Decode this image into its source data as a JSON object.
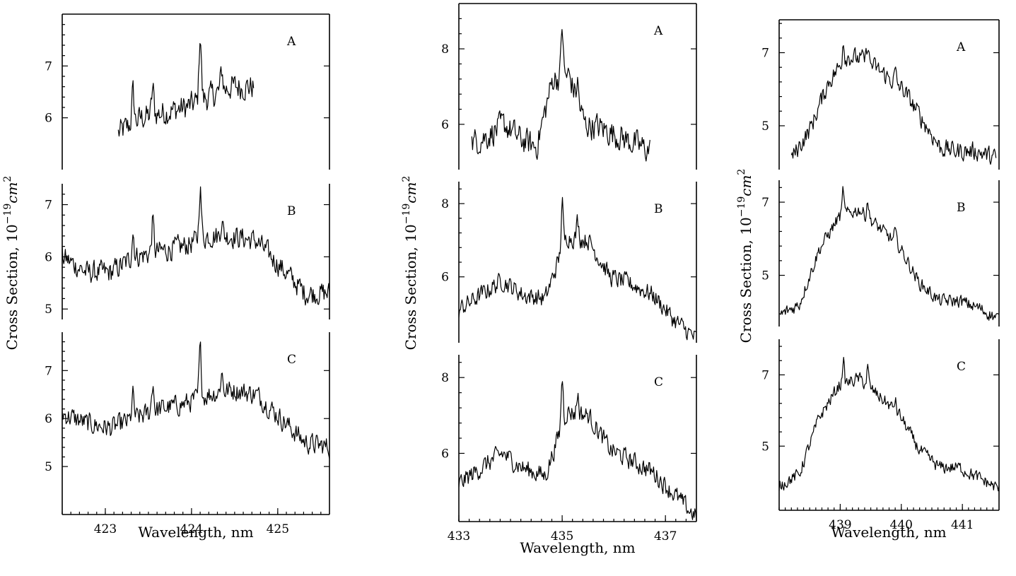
{
  "chart_data": [
    {
      "type": "line",
      "xlabel": "Wavelength, nm",
      "ylabel_text": "Cross Section, 10",
      "ylabel_exp": "−19",
      "ylabel_unit": "cm",
      "ylabel_unit_exp": "2",
      "xlim": [
        422.5,
        425.6
      ],
      "xticks": [
        "423",
        "424",
        "425"
      ],
      "xtick_values": [
        423,
        424,
        425
      ],
      "panels": [
        {
          "label": "A",
          "ylim": [
            5.0,
            8.0
          ],
          "yticks": [
            "6",
            "7"
          ],
          "ytick_values": [
            6,
            7
          ],
          "series": [
            {
              "x_range": [
                423.15,
                424.72
              ],
              "baseline": [
                5.7,
                6.0,
                6.1,
                6.2,
                6.4,
                6.6,
                6.6
              ],
              "peaks": [
                [
                  423.32,
                  0.6
                ],
                [
                  423.55,
                  0.5
                ],
                [
                  424.1,
                  1.3
                ],
                [
                  424.35,
                  0.4
                ]
              ],
              "noise": 0.35
            }
          ]
        },
        {
          "label": "B",
          "ylim": [
            4.8,
            7.4
          ],
          "yticks": [
            "5",
            "6",
            "7"
          ],
          "ytick_values": [
            5,
            6,
            7
          ],
          "series": [
            {
              "x_range": [
                422.5,
                425.6
              ],
              "baseline": [
                6.0,
                5.7,
                5.7,
                6.0,
                6.1,
                6.2,
                6.4,
                6.4,
                6.3,
                5.8,
                5.3,
                5.3
              ],
              "peaks": [
                [
                  423.32,
                  0.5
                ],
                [
                  423.55,
                  0.6
                ],
                [
                  424.1,
                  1.0
                ],
                [
                  424.35,
                  0.3
                ]
              ],
              "noise": 0.3
            }
          ]
        },
        {
          "label": "C",
          "ylim": [
            4.0,
            7.8
          ],
          "yticks": [
            "5",
            "6",
            "7"
          ],
          "ytick_values": [
            5,
            6,
            7
          ],
          "series": [
            {
              "x_range": [
                422.5,
                425.6
              ],
              "baseline": [
                6.1,
                5.9,
                5.8,
                6.0,
                6.2,
                6.3,
                6.5,
                6.6,
                6.5,
                6.0,
                5.5,
                5.4
              ],
              "peaks": [
                [
                  423.32,
                  0.5
                ],
                [
                  423.55,
                  0.6
                ],
                [
                  424.1,
                  1.0
                ],
                [
                  424.35,
                  0.4
                ]
              ],
              "noise": 0.3
            }
          ]
        }
      ]
    },
    {
      "type": "line",
      "xlabel": "Wavelength, nm",
      "ylabel_text": "Cross Section, 10",
      "ylabel_exp": "−19",
      "ylabel_unit": "cm",
      "ylabel_unit_exp": "2",
      "xlim": [
        433.0,
        437.6
      ],
      "xticks": [
        "433",
        "435",
        "437"
      ],
      "xtick_values": [
        433,
        435,
        437
      ],
      "panels": [
        {
          "label": "A",
          "ylim": [
            4.8,
            9.2
          ],
          "yticks": [
            "6",
            "8"
          ],
          "ytick_values": [
            6,
            8
          ],
          "series": [
            {
              "x_range": [
                433.25,
                436.7
              ],
              "baseline": [
                5.5,
                5.7,
                6.0,
                5.6,
                5.4,
                7.2,
                7.3,
                6.0,
                5.9,
                5.7,
                5.5,
                5.3
              ],
              "peaks": [
                [
                  435.0,
                  1.4
                ],
                [
                  435.3,
                  0.5
                ]
              ],
              "noise": 0.5
            }
          ]
        },
        {
          "label": "B",
          "ylim": [
            4.2,
            8.6
          ],
          "yticks": [
            "6",
            "8"
          ],
          "ytick_values": [
            6,
            8
          ],
          "series": [
            {
              "x_range": [
                433.0,
                437.6
              ],
              "baseline": [
                5.1,
                5.5,
                5.9,
                5.5,
                5.4,
                7.1,
                7.0,
                6.0,
                5.8,
                5.5,
                4.8,
                4.3
              ],
              "peaks": [
                [
                  435.0,
                  1.3
                ],
                [
                  435.3,
                  0.5
                ]
              ],
              "noise": 0.35
            }
          ]
        },
        {
          "label": "C",
          "ylim": [
            4.2,
            8.6
          ],
          "yticks": [
            "6",
            "8"
          ],
          "ytick_values": [
            6,
            8
          ],
          "series": [
            {
              "x_range": [
                433.0,
                437.6
              ],
              "baseline": [
                5.2,
                5.6,
                6.0,
                5.6,
                5.4,
                7.1,
                7.0,
                6.1,
                5.8,
                5.5,
                4.9,
                4.3
              ],
              "peaks": [
                [
                  435.0,
                  1.3
                ],
                [
                  435.3,
                  0.5
                ]
              ],
              "noise": 0.35
            }
          ]
        }
      ]
    },
    {
      "type": "line",
      "xlabel": "Wavelength, nm",
      "ylabel_text": "Cross Section, 10",
      "ylabel_exp": "−19",
      "ylabel_unit": "cm",
      "ylabel_unit_exp": "2",
      "xlim": [
        438.0,
        441.6
      ],
      "xticks": [
        "439",
        "440",
        "441"
      ],
      "xtick_values": [
        439,
        440,
        441
      ],
      "panels": [
        {
          "label": "A",
          "ylim": [
            3.8,
            7.9
          ],
          "yticks": [
            "5",
            "7"
          ],
          "ytick_values": [
            5,
            7
          ],
          "series": [
            {
              "x_range": [
                438.2,
                441.55
              ],
              "baseline": [
                4.1,
                4.9,
                6.2,
                6.9,
                6.8,
                6.4,
                6.0,
                5.2,
                4.4,
                4.3,
                4.3,
                4.1
              ],
              "peaks": [
                [
                  439.05,
                  0.6
                ],
                [
                  439.45,
                  0.5
                ],
                [
                  439.9,
                  0.3
                ]
              ],
              "noise": 0.35
            }
          ]
        },
        {
          "label": "B",
          "ylim": [
            3.6,
            7.6
          ],
          "yticks": [
            "5",
            "7"
          ],
          "ytick_values": [
            5,
            7
          ],
          "series": [
            {
              "x_range": [
                438.0,
                441.6
              ],
              "baseline": [
                3.9,
                4.2,
                5.7,
                6.6,
                6.8,
                6.3,
                5.8,
                4.8,
                4.3,
                4.3,
                4.1,
                3.8
              ],
              "peaks": [
                [
                  439.05,
                  0.7
                ],
                [
                  439.45,
                  0.5
                ],
                [
                  439.9,
                  0.3
                ]
              ],
              "noise": 0.25
            }
          ]
        },
        {
          "label": "C",
          "ylim": [
            3.2,
            8.0
          ],
          "yticks": [
            "5",
            "7"
          ],
          "ytick_values": [
            5,
            7
          ],
          "series": [
            {
              "x_range": [
                438.0,
                441.6
              ],
              "baseline": [
                3.9,
                4.2,
                5.8,
                6.7,
                6.9,
                6.4,
                5.9,
                4.9,
                4.4,
                4.4,
                4.1,
                3.8
              ],
              "peaks": [
                [
                  439.05,
                  0.7
                ],
                [
                  439.45,
                  0.5
                ],
                [
                  439.9,
                  0.3
                ]
              ],
              "noise": 0.25
            }
          ]
        }
      ]
    }
  ]
}
